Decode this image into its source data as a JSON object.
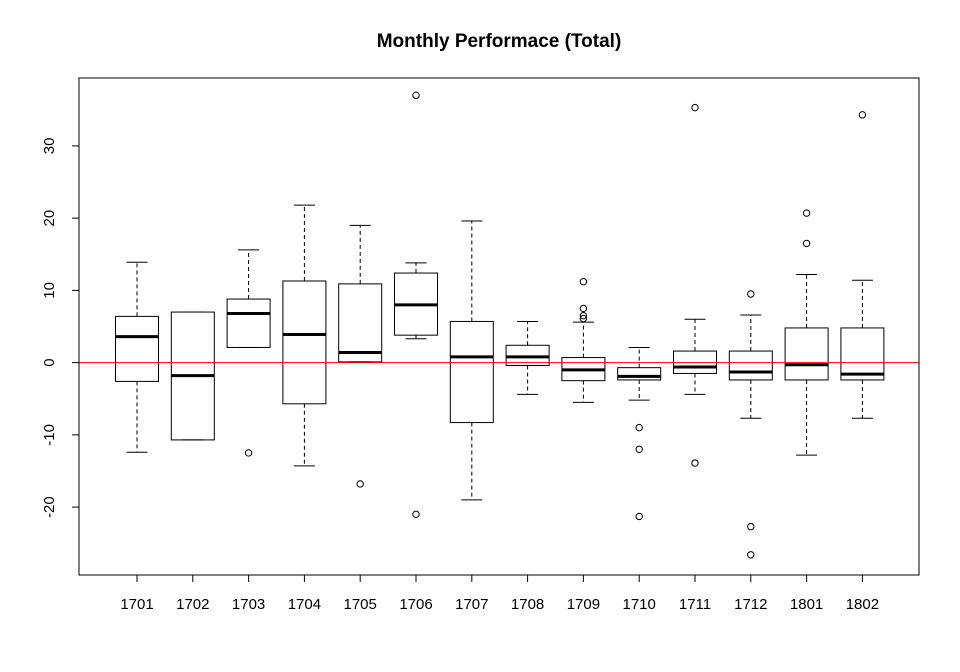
{
  "chart_data": {
    "type": "boxplot",
    "title": "Monthly Performace (Total)",
    "xlabel": "",
    "ylabel": "",
    "ylim": [
      -29.4,
      39.4
    ],
    "yticks": [
      -20,
      -10,
      0,
      10,
      20,
      30
    ],
    "grid": false,
    "legend": "none",
    "reference_line": {
      "y": 0,
      "color": "#ff0000"
    },
    "colors": {
      "box": "#000000",
      "median": "#000000",
      "background": "#ffffff"
    },
    "categories": [
      "1701",
      "1702",
      "1703",
      "1704",
      "1705",
      "1706",
      "1707",
      "1708",
      "1709",
      "1710",
      "1711",
      "1712",
      "1801",
      "1802"
    ],
    "boxes": [
      {
        "category": "1701",
        "whisker_low": -12.4,
        "q1": -2.6,
        "median": 3.6,
        "q3": 6.4,
        "whisker_high": 13.9,
        "outliers": []
      },
      {
        "category": "1702",
        "whisker_low": -10.7,
        "q1": -10.7,
        "median": -1.8,
        "q3": 7.0,
        "whisker_high": 7.0,
        "outliers": []
      },
      {
        "category": "1703",
        "whisker_low": 2.1,
        "q1": 2.1,
        "median": 6.8,
        "q3": 8.8,
        "whisker_high": 15.6,
        "outliers": [
          -12.5
        ]
      },
      {
        "category": "1704",
        "whisker_low": -14.3,
        "q1": -5.7,
        "median": 3.9,
        "q3": 11.3,
        "whisker_high": 21.8,
        "outliers": []
      },
      {
        "category": "1705",
        "whisker_low": 0.1,
        "q1": 0.1,
        "median": 1.4,
        "q3": 10.9,
        "whisker_high": 19.0,
        "outliers": [
          -16.8
        ]
      },
      {
        "category": "1706",
        "whisker_low": 3.3,
        "q1": 3.8,
        "median": 8.0,
        "q3": 12.4,
        "whisker_high": 13.8,
        "outliers": [
          37.0,
          -21.0
        ]
      },
      {
        "category": "1707",
        "whisker_low": -19.0,
        "q1": -8.3,
        "median": 0.8,
        "q3": 5.7,
        "whisker_high": 19.6,
        "outliers": []
      },
      {
        "category": "1708",
        "whisker_low": -4.4,
        "q1": -0.4,
        "median": 0.8,
        "q3": 2.4,
        "whisker_high": 5.7,
        "outliers": []
      },
      {
        "category": "1709",
        "whisker_low": -5.5,
        "q1": -2.5,
        "median": -1.0,
        "q3": 0.7,
        "whisker_high": 5.6,
        "outliers": [
          11.2,
          7.5,
          6.5,
          6.1
        ]
      },
      {
        "category": "1710",
        "whisker_low": -5.2,
        "q1": -2.4,
        "median": -1.9,
        "q3": -0.7,
        "whisker_high": 2.1,
        "outliers": [
          -9.0,
          -12.0,
          -21.3
        ]
      },
      {
        "category": "1711",
        "whisker_low": -4.4,
        "q1": -1.5,
        "median": -0.6,
        "q3": 1.6,
        "whisker_high": 6.0,
        "outliers": [
          35.3,
          -13.9
        ]
      },
      {
        "category": "1712",
        "whisker_low": -7.7,
        "q1": -2.4,
        "median": -1.3,
        "q3": 1.6,
        "whisker_high": 6.6,
        "outliers": [
          9.5,
          -22.7,
          -26.6
        ]
      },
      {
        "category": "1801",
        "whisker_low": -12.8,
        "q1": -2.4,
        "median": -0.3,
        "q3": 4.8,
        "whisker_high": 12.2,
        "outliers": [
          20.7,
          16.5
        ]
      },
      {
        "category": "1802",
        "whisker_low": -7.7,
        "q1": -2.4,
        "median": -1.6,
        "q3": 4.8,
        "whisker_high": 11.4,
        "outliers": [
          34.3
        ]
      }
    ]
  }
}
